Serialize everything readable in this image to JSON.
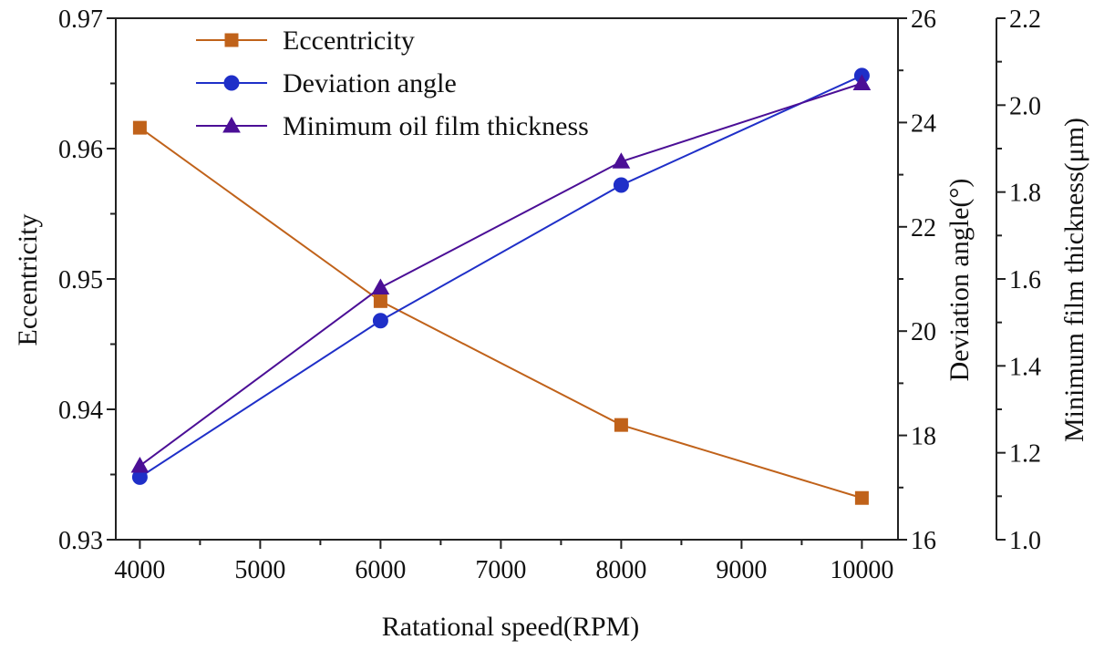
{
  "chart_data": {
    "type": "line",
    "title": "",
    "xlabel": "Ratational speed(RPM)",
    "x": [
      4000,
      6000,
      8000,
      10000
    ],
    "xlim": [
      3800,
      10300
    ],
    "xticks": [
      "4000",
      "5000",
      "6000",
      "7000",
      "8000",
      "9000",
      "10000"
    ],
    "axes": {
      "left": {
        "label": "Eccentricity",
        "lim": [
          0.93,
          0.97
        ],
        "ticks": [
          "0.93",
          "0.94",
          "0.95",
          "0.96",
          "0.97"
        ]
      },
      "right1": {
        "label": "Deviation angle(°)",
        "lim": [
          16,
          26
        ],
        "ticks": [
          "16",
          "18",
          "20",
          "22",
          "24",
          "26"
        ]
      },
      "right2": {
        "label": "Minimum film thickness(μm)",
        "lim": [
          1.0,
          2.2
        ],
        "ticks": [
          "1.0",
          "1.2",
          "1.4",
          "1.6",
          "1.8",
          "2.0",
          "2.2"
        ]
      }
    },
    "series": [
      {
        "name": "Eccentricity",
        "axis": "left",
        "marker": "square",
        "color": "#C0621A",
        "values": [
          0.9616,
          0.9483,
          0.9388,
          0.9332
        ]
      },
      {
        "name": "Deviation angle",
        "axis": "right1",
        "marker": "circle",
        "color": "#1F2FC8",
        "values": [
          17.2,
          20.2,
          22.8,
          24.9
        ]
      },
      {
        "name": "Minimum oil film thickness",
        "axis": "right2",
        "marker": "triangle",
        "color": "#4B0F96",
        "values": [
          1.17,
          1.58,
          1.87,
          2.05
        ]
      }
    ],
    "legend": {
      "placement": "top-left"
    }
  }
}
